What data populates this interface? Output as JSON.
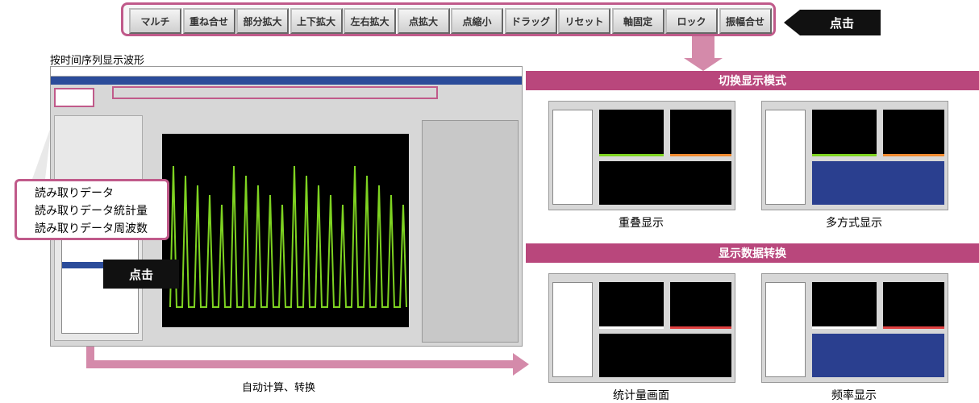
{
  "toolbar": {
    "buttons": [
      "マルチ",
      "重ね合せ",
      "部分拡大",
      "上下拡大",
      "左右拡大",
      "点拡大",
      "点縮小",
      "ドラッグ",
      "リセット",
      "軸固定",
      "ロック",
      "振幅合せ"
    ],
    "callout": "点击"
  },
  "main": {
    "title": "按时间序列显示波形",
    "menu": [
      "読み取りデータ",
      "読み取りデータ統計量",
      "読み取りデータ周波数"
    ],
    "callout": "点击",
    "footer": "自动计算、转换"
  },
  "panels": [
    {
      "title": "切换显示模式",
      "items": [
        {
          "caption": "重叠显示"
        },
        {
          "caption": "多方式显示"
        }
      ]
    },
    {
      "title": "显示数据转换",
      "items": [
        {
          "caption": "统计量画面"
        },
        {
          "caption": "频率显示"
        }
      ]
    }
  ]
}
